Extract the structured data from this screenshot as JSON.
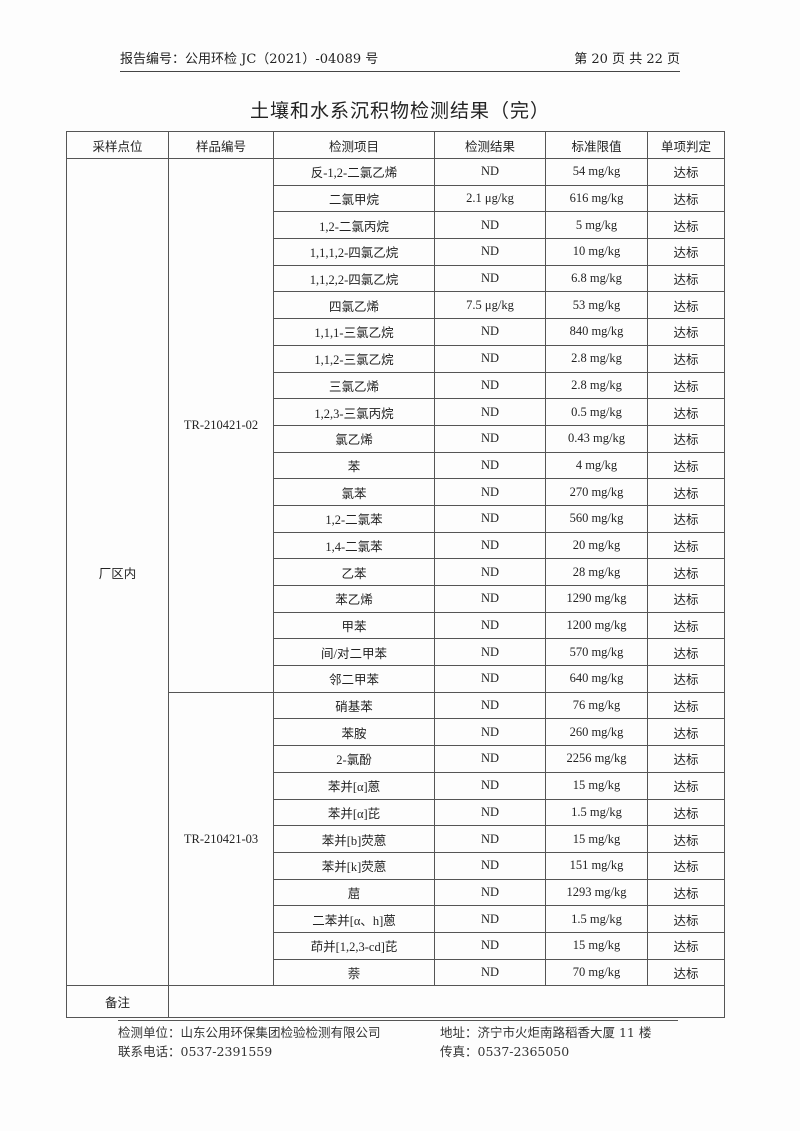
{
  "header": {
    "report_no": "报告编号：公用环检 JC（2021）-04089 号",
    "page": "第 20 页 共 22 页"
  },
  "title": "土壤和水系沉积物检测结果（完）",
  "table": {
    "headers": [
      "采样点位",
      "样品编号",
      "检测项目",
      "检测结果",
      "标准限值",
      "单项判定"
    ],
    "location": "厂区内",
    "groups": [
      {
        "sample_id": "TR-210421-02",
        "rows": [
          [
            "反-1,2-二氯乙烯",
            "ND",
            "54 mg/kg",
            "达标"
          ],
          [
            "二氯甲烷",
            "2.1 μg/kg",
            "616 mg/kg",
            "达标"
          ],
          [
            "1,2-二氯丙烷",
            "ND",
            "5 mg/kg",
            "达标"
          ],
          [
            "1,1,1,2-四氯乙烷",
            "ND",
            "10 mg/kg",
            "达标"
          ],
          [
            "1,1,2,2-四氯乙烷",
            "ND",
            "6.8 mg/kg",
            "达标"
          ],
          [
            "四氯乙烯",
            "7.5 μg/kg",
            "53 mg/kg",
            "达标"
          ],
          [
            "1,1,1-三氯乙烷",
            "ND",
            "840 mg/kg",
            "达标"
          ],
          [
            "1,1,2-三氯乙烷",
            "ND",
            "2.8 mg/kg",
            "达标"
          ],
          [
            "三氯乙烯",
            "ND",
            "2.8 mg/kg",
            "达标"
          ],
          [
            "1,2,3-三氯丙烷",
            "ND",
            "0.5 mg/kg",
            "达标"
          ],
          [
            "氯乙烯",
            "ND",
            "0.43 mg/kg",
            "达标"
          ],
          [
            "苯",
            "ND",
            "4 mg/kg",
            "达标"
          ],
          [
            "氯苯",
            "ND",
            "270 mg/kg",
            "达标"
          ],
          [
            "1,2-二氯苯",
            "ND",
            "560 mg/kg",
            "达标"
          ],
          [
            "1,4-二氯苯",
            "ND",
            "20 mg/kg",
            "达标"
          ],
          [
            "乙苯",
            "ND",
            "28 mg/kg",
            "达标"
          ],
          [
            "苯乙烯",
            "ND",
            "1290 mg/kg",
            "达标"
          ],
          [
            "甲苯",
            "ND",
            "1200 mg/kg",
            "达标"
          ],
          [
            "间/对二甲苯",
            "ND",
            "570 mg/kg",
            "达标"
          ],
          [
            "邻二甲苯",
            "ND",
            "640 mg/kg",
            "达标"
          ]
        ]
      },
      {
        "sample_id": "TR-210421-03",
        "rows": [
          [
            "硝基苯",
            "ND",
            "76 mg/kg",
            "达标"
          ],
          [
            "苯胺",
            "ND",
            "260 mg/kg",
            "达标"
          ],
          [
            "2-氯酚",
            "ND",
            "2256 mg/kg",
            "达标"
          ],
          [
            "苯并[α]蒽",
            "ND",
            "15 mg/kg",
            "达标"
          ],
          [
            "苯并[α]芘",
            "ND",
            "1.5 mg/kg",
            "达标"
          ],
          [
            "苯并[b]荧蒽",
            "ND",
            "15 mg/kg",
            "达标"
          ],
          [
            "苯并[k]荧蒽",
            "ND",
            "151 mg/kg",
            "达标"
          ],
          [
            "䓛",
            "ND",
            "1293 mg/kg",
            "达标"
          ],
          [
            "二苯并[α、h]蒽",
            "ND",
            "1.5 mg/kg",
            "达标"
          ],
          [
            "茚并[1,2,3-cd]芘",
            "ND",
            "15 mg/kg",
            "达标"
          ],
          [
            "萘",
            "ND",
            "70 mg/kg",
            "达标"
          ]
        ]
      }
    ],
    "remark_label": "备注",
    "remark_value": ""
  },
  "footer": {
    "unit": "检测单位：山东公用环保集团检验检测有限公司",
    "address": "地址：济宁市火炬南路稻香大厦 11 楼",
    "phone": "联系电话：0537-2391559",
    "fax": "传真：0537-2365050"
  }
}
